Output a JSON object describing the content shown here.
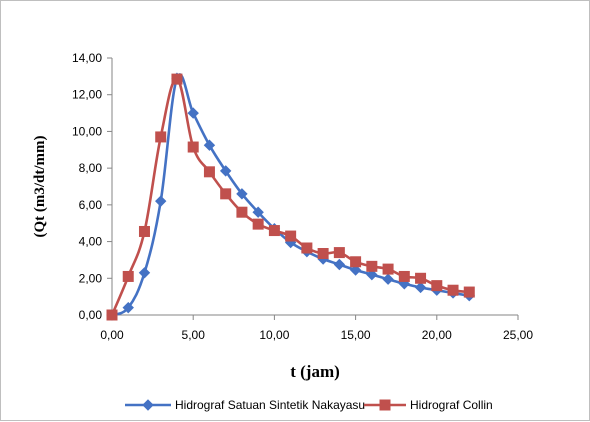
{
  "chart_data": {
    "type": "line",
    "xlabel": "t (jam)",
    "ylabel": "(Qt (m3/dt/mm)",
    "xlim": [
      0,
      25
    ],
    "ylim": [
      0,
      14
    ],
    "x_ticks": [
      "0,00",
      "5,00",
      "10,00",
      "15,00",
      "20,00",
      "25,00"
    ],
    "y_ticks": [
      "0,00",
      "2,00",
      "4,00",
      "6,00",
      "8,00",
      "10,00",
      "12,00",
      "14,00"
    ],
    "grid": false,
    "legend_position": "bottom",
    "series": [
      {
        "name": "Hidrograf Satuan Sintetik Nakayasu",
        "color": "#4472c4",
        "marker": "diamond",
        "x": [
          0,
          1,
          2,
          3,
          4,
          5,
          6,
          7,
          8,
          9,
          10,
          11,
          12,
          13,
          14,
          15,
          16,
          17,
          18,
          19,
          20,
          21,
          22
        ],
        "y": [
          0.0,
          0.4,
          2.3,
          6.2,
          12.9,
          11.0,
          9.25,
          7.85,
          6.6,
          5.6,
          4.7,
          3.95,
          3.45,
          3.05,
          2.75,
          2.45,
          2.2,
          1.95,
          1.7,
          1.5,
          1.35,
          1.2,
          1.05
        ]
      },
      {
        "name": "Hidrograf Collin",
        "color": "#c0504d",
        "marker": "square",
        "x": [
          0,
          1,
          2,
          3,
          4,
          5,
          6,
          7,
          8,
          9,
          10,
          11,
          12,
          13,
          14,
          15,
          16,
          17,
          18,
          19,
          20,
          21,
          22
        ],
        "y": [
          0.0,
          2.1,
          4.55,
          9.7,
          12.85,
          9.15,
          7.8,
          6.6,
          5.6,
          4.95,
          4.6,
          4.3,
          3.65,
          3.35,
          3.4,
          2.9,
          2.65,
          2.5,
          2.1,
          2.0,
          1.6,
          1.35,
          1.25
        ]
      }
    ]
  }
}
